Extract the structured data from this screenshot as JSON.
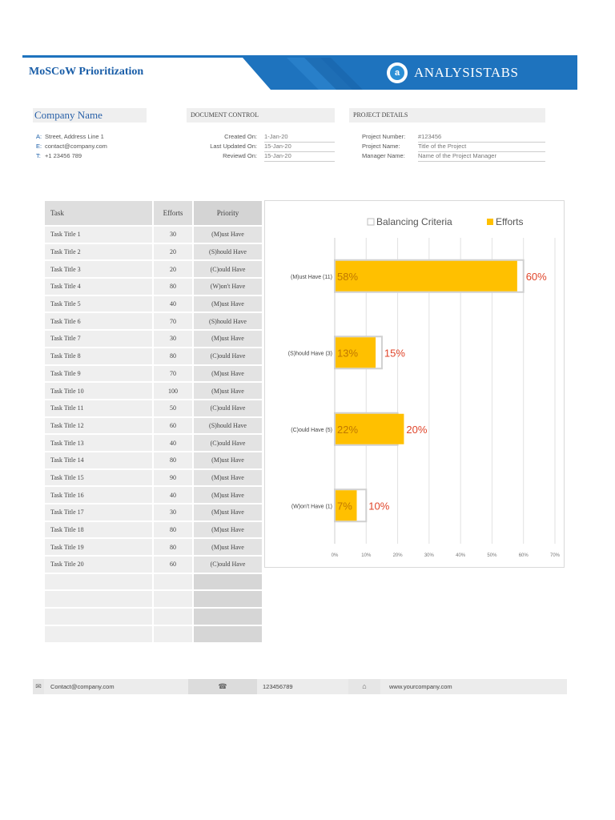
{
  "header": {
    "title": "MoSCoW Prioritization",
    "brand": "ANALYSISTABS",
    "brand_logo_letter": "a",
    "brand_color": "#1e73be"
  },
  "company": {
    "name": "Company Name",
    "address_label": "A:",
    "address": "Street, Address Line 1",
    "email_label": "E:",
    "email": "contact@company.com",
    "phone_label": "T:",
    "phone": "+1 23456 789"
  },
  "document_control": {
    "heading": "DOCUMENT CONTROL",
    "created_label": "Created On:",
    "created_value": "1-Jan-20",
    "updated_label": "Last Updated On:",
    "updated_value": "15-Jan-20",
    "reviewed_label": "Reviewd On:",
    "reviewed_value": "15-Jan-20"
  },
  "project_details": {
    "heading": "PROJECT DETAILS",
    "number_label": "Project Number:",
    "number_value": "#123456",
    "name_label": "Project Name:",
    "name_value": "Title of the Project",
    "manager_label": "Manager Name:",
    "manager_value": "Name of the Project Manager"
  },
  "table": {
    "headers": [
      "Task",
      "Efforts",
      "Priority"
    ],
    "rows": [
      {
        "task": "Task Title 1",
        "efforts": "30",
        "priority": "(M)ust Have"
      },
      {
        "task": "Task Title 2",
        "efforts": "20",
        "priority": "(S)hould Have"
      },
      {
        "task": "Task Title 3",
        "efforts": "20",
        "priority": "(C)ould Have"
      },
      {
        "task": "Task Title 4",
        "efforts": "80",
        "priority": "(W)on't Have"
      },
      {
        "task": "Task Title 5",
        "efforts": "40",
        "priority": "(M)ust Have"
      },
      {
        "task": "Task Title 6",
        "efforts": "70",
        "priority": "(S)hould Have"
      },
      {
        "task": "Task Title 7",
        "efforts": "30",
        "priority": "(M)ust Have"
      },
      {
        "task": "Task Title 8",
        "efforts": "80",
        "priority": "(C)ould Have"
      },
      {
        "task": "Task Title 9",
        "efforts": "70",
        "priority": "(M)ust Have"
      },
      {
        "task": "Task Title 10",
        "efforts": "100",
        "priority": "(M)ust Have"
      },
      {
        "task": "Task Title 11",
        "efforts": "50",
        "priority": "(C)ould Have"
      },
      {
        "task": "Task Title 12",
        "efforts": "60",
        "priority": "(S)hould Have"
      },
      {
        "task": "Task Title 13",
        "efforts": "40",
        "priority": "(C)ould Have"
      },
      {
        "task": "Task Title 14",
        "efforts": "80",
        "priority": "(M)ust Have"
      },
      {
        "task": "Task Title 15",
        "efforts": "90",
        "priority": "(M)ust Have"
      },
      {
        "task": "Task Title 16",
        "efforts": "40",
        "priority": "(M)ust Have"
      },
      {
        "task": "Task Title 17",
        "efforts": "30",
        "priority": "(M)ust Have"
      },
      {
        "task": "Task Title 18",
        "efforts": "80",
        "priority": "(M)ust Have"
      },
      {
        "task": "Task Title 19",
        "efforts": "80",
        "priority": "(M)ust Have"
      },
      {
        "task": "Task Title 20",
        "efforts": "60",
        "priority": "(C)ould Have"
      },
      {
        "task": "",
        "efforts": "",
        "priority": ""
      },
      {
        "task": "",
        "efforts": "",
        "priority": ""
      },
      {
        "task": "",
        "efforts": "",
        "priority": ""
      },
      {
        "task": "",
        "efforts": "",
        "priority": ""
      }
    ]
  },
  "chart_data": {
    "type": "bar",
    "orientation": "horizontal",
    "categories": [
      "(M)ust Have (11)",
      "(S)hould Have (3)",
      "(C)ould Have (5)",
      "(W)on't Have (1)"
    ],
    "series": [
      {
        "name": "Balancing Criteria",
        "values": [
          60,
          15,
          20,
          10
        ],
        "labels": [
          "60%",
          "15%",
          "20%",
          "10%"
        ],
        "color": "#ffffff",
        "stroke": "#d0d0d0",
        "label_color": "#e0452a"
      },
      {
        "name": "Efforts",
        "values": [
          58,
          13,
          22,
          7
        ],
        "labels": [
          "58%",
          "13%",
          "22%",
          "7%"
        ],
        "color": "#ffc000",
        "label_color": "#c07800"
      }
    ],
    "xlim": [
      0,
      70
    ],
    "xticks": [
      "0%",
      "10%",
      "20%",
      "30%",
      "40%",
      "50%",
      "60%",
      "70%"
    ],
    "grid": true,
    "legend": "top-right",
    "title": "",
    "xlabel": "",
    "ylabel": ""
  },
  "footer": {
    "email": "Contact@company.com",
    "phone": "123456789",
    "website": "www.yourcompany.com",
    "email_icon": "✉",
    "phone_icon": "☎",
    "web_icon": "⌂"
  }
}
